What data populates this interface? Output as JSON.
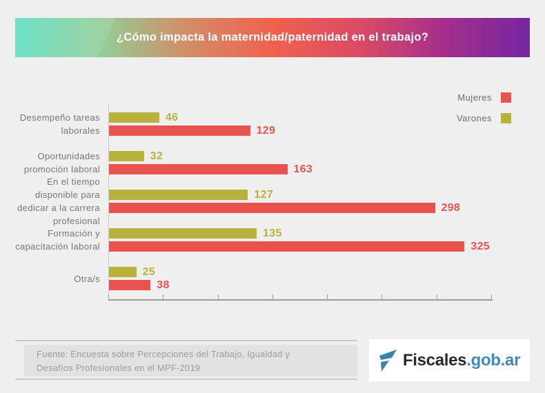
{
  "banner": {
    "title": "¿Cómo impacta la maternidad/paternidad en el trabajo?",
    "gradient_stops": [
      "#5EDEC2",
      "#93CD96",
      "#D18E68",
      "#F0614E",
      "#DA4B66",
      "#A62F8B",
      "#7526A1"
    ]
  },
  "legend": [
    {
      "label": "Mujeres",
      "color": "#E8534F"
    },
    {
      "label": "Varones",
      "color": "#B6B23C"
    }
  ],
  "chart_data": {
    "type": "bar",
    "orientation": "horizontal",
    "title": "¿Cómo impacta la maternidad/paternidad en el trabajo?",
    "categories": [
      "Desempeño tareas laborales",
      "Oportunidades promoción laboral",
      "En el tiempo disponible para dedicar a la carrera profesional",
      "Formación y capacitación laboral",
      "Otra/s"
    ],
    "categories_lines": [
      [
        "Desempeño tareas",
        "laborales"
      ],
      [
        "Oportunidades",
        "promoción laboral"
      ],
      [
        "En el tiempo",
        "disponible para",
        "dedicar a la carrera",
        "profesional"
      ],
      [
        "Formación y",
        "capacitación laboral"
      ],
      [
        "Otra/s"
      ]
    ],
    "series": [
      {
        "name": "Varones",
        "color": "#B6B23C",
        "values": [
          46,
          32,
          127,
          135,
          25
        ]
      },
      {
        "name": "Mujeres",
        "color": "#E8534F",
        "values": [
          129,
          163,
          298,
          325,
          38
        ]
      }
    ],
    "xlim": [
      0,
      350
    ],
    "tick_interval": 50,
    "tick_labels_visible": false,
    "grid": false,
    "legend_position": "top-right",
    "value_labels": true
  },
  "footer": {
    "source_line1": "Fuente: Encuesta sobre Percepciones del Trabajo, Igualdad y",
    "source_line2": "Desafíos Profesionales en el MPF-2019",
    "logo": {
      "text_dark": "Fiscales",
      "text_blue": ".gob.ar",
      "icon_color": "#3884AF"
    }
  }
}
